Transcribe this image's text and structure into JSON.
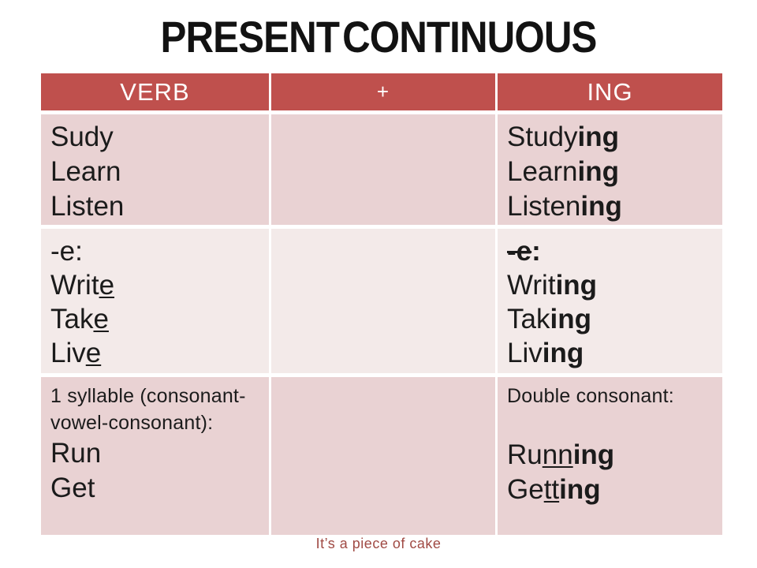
{
  "title": "PRESENT CONTINUOUS",
  "footer": "It’s a piece of cake",
  "colors": {
    "header_bg": "#bf504d",
    "header_text": "#ffffff",
    "band_dark": "#e9d2d3",
    "band_light": "#f3eae9",
    "body_text": "#1b1b1b",
    "footer_text": "#a04a44"
  },
  "table": {
    "headers": [
      "VERB",
      "+",
      "ING"
    ],
    "rows": [
      {
        "verb": [
          [
            {
              "t": "Sudy"
            }
          ],
          [
            {
              "t": "Learn"
            }
          ],
          [
            {
              "t": "Listen"
            }
          ]
        ],
        "ing": [
          [
            {
              "t": "Study"
            },
            {
              "t": "ing"
            }
          ],
          [
            {
              "t": "Learn"
            },
            {
              "t": "ing"
            }
          ],
          [
            {
              "t": "Listen"
            },
            {
              "t": "ing"
            }
          ]
        ]
      },
      {
        "verb": [
          [
            {
              "t": "-e:"
            }
          ],
          [
            {
              "t": "Writ"
            },
            {
              "t": "e"
            }
          ],
          [
            {
              "t": "Tak"
            },
            {
              "t": "e"
            }
          ],
          [
            {
              "t": "Liv"
            },
            {
              "t": "e"
            }
          ]
        ],
        "ing": [
          [
            {
              "t": "-e"
            },
            {
              "t": ":"
            }
          ],
          [
            {
              "t": "Writ"
            },
            {
              "t": "ing"
            }
          ],
          [
            {
              "t": "Tak"
            },
            {
              "t": "ing"
            }
          ],
          [
            {
              "t": "Liv"
            },
            {
              "t": "ing"
            }
          ]
        ]
      },
      {
        "verb": [
          [
            {
              "t": "1 syllable (consonant-vowel-consonant):"
            }
          ],
          [
            {
              "t": "Run"
            }
          ],
          [
            {
              "t": "Get"
            }
          ]
        ],
        "ing": [
          [
            {
              "t": "Double consonant:"
            }
          ],
          [
            {
              "t": "Ru"
            },
            {
              "t": "nn"
            },
            {
              "t": "ing"
            }
          ],
          [
            {
              "t": "Ge"
            },
            {
              "t": "tt"
            },
            {
              "t": "ing"
            }
          ]
        ]
      }
    ]
  }
}
